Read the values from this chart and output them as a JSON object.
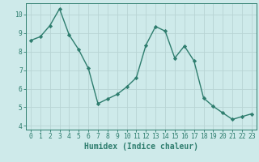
{
  "x": [
    0,
    1,
    2,
    3,
    4,
    5,
    6,
    7,
    8,
    9,
    10,
    11,
    12,
    13,
    14,
    15,
    16,
    17,
    18,
    19,
    20,
    21,
    22,
    23
  ],
  "y": [
    8.6,
    8.8,
    9.4,
    10.3,
    8.9,
    8.1,
    7.1,
    5.2,
    5.45,
    5.7,
    6.1,
    6.6,
    8.35,
    9.35,
    9.1,
    7.65,
    8.3,
    7.5,
    5.5,
    5.05,
    4.7,
    4.35,
    4.5,
    4.65
  ],
  "line_color": "#2e7d6e",
  "marker": "D",
  "marker_size": 2.2,
  "bg_color": "#ceeaea",
  "grid_color": "#b8d4d4",
  "xlabel": "Humidex (Indice chaleur)",
  "ylim": [
    3.8,
    10.6
  ],
  "xlim": [
    -0.5,
    23.5
  ],
  "yticks": [
    4,
    5,
    6,
    7,
    8,
    9,
    10
  ],
  "xticks": [
    0,
    1,
    2,
    3,
    4,
    5,
    6,
    7,
    8,
    9,
    10,
    11,
    12,
    13,
    14,
    15,
    16,
    17,
    18,
    19,
    20,
    21,
    22,
    23
  ],
  "tick_color": "#2e7d6e",
  "xlabel_fontsize": 7,
  "tick_fontsize": 5.8,
  "spine_color": "#2e7d6e",
  "linewidth": 1.0
}
